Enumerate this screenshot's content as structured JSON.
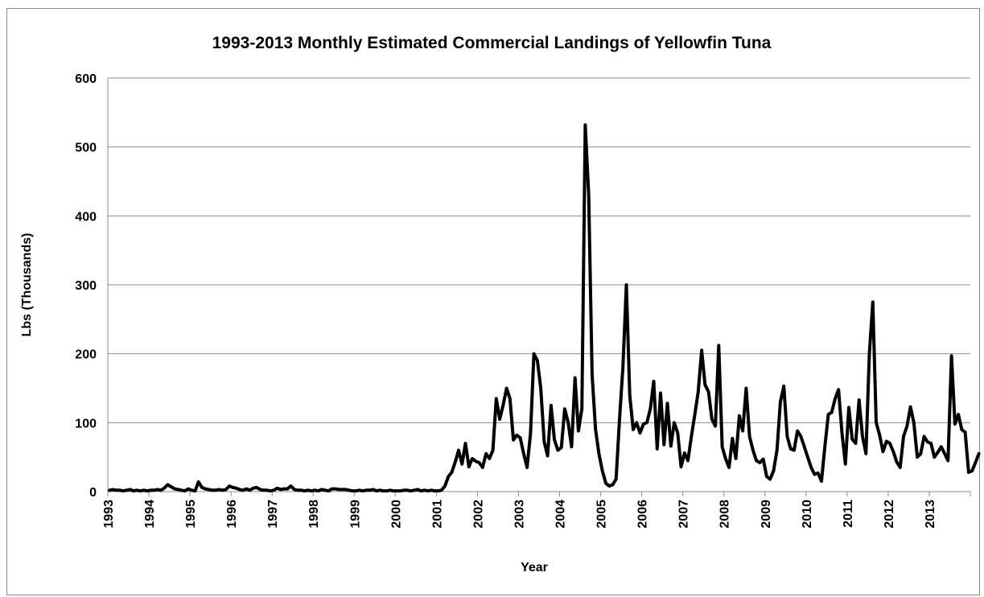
{
  "chart_data": {
    "type": "line",
    "title": "1993-2013 Monthly Estimated Commercial Landings of Yellowfin Tuna",
    "xlabel": "Year",
    "ylabel": "Lbs (Thousands)",
    "ylim": [
      0,
      600
    ],
    "yticks": [
      "0",
      "100",
      "200",
      "300",
      "400",
      "500",
      "600"
    ],
    "xticks": [
      "1993",
      "1994",
      "1995",
      "1996",
      "1997",
      "1998",
      "1999",
      "2000",
      "2001",
      "2002",
      "2003",
      "2004",
      "2005",
      "2006",
      "2007",
      "2008",
      "2009",
      "2010",
      "2011",
      "2012",
      "2013"
    ],
    "grid": "horizontal",
    "line_color": "#000000",
    "series": [
      {
        "x_start": "1993-01",
        "frequency": "monthly",
        "values": [
          2,
          3,
          2,
          2,
          1,
          2,
          3,
          1,
          2,
          1,
          2,
          1,
          2,
          2,
          3,
          2,
          5,
          10,
          7,
          4,
          3,
          2,
          1,
          4,
          2,
          1,
          14,
          6,
          4,
          3,
          2,
          2,
          3,
          2,
          3,
          8,
          6,
          5,
          3,
          2,
          4,
          2,
          5,
          6,
          3,
          2,
          2,
          1,
          2,
          5,
          3,
          4,
          4,
          8,
          3,
          2,
          2,
          1,
          2,
          1,
          2,
          1,
          3,
          2,
          1,
          4,
          4,
          3,
          3,
          3,
          2,
          1,
          1,
          2,
          1,
          2,
          2,
          3,
          1,
          2,
          1,
          1,
          2,
          1,
          1,
          1,
          2,
          2,
          1,
          2,
          3,
          1,
          2,
          1,
          2,
          1,
          1,
          2,
          8,
          22,
          28,
          43,
          60,
          40,
          70,
          36,
          48,
          44,
          42,
          35,
          55,
          48,
          60,
          135,
          105,
          125,
          150,
          135,
          75,
          82,
          78,
          55,
          35,
          85,
          200,
          190,
          150,
          72,
          52,
          125,
          75,
          60,
          64,
          120,
          100,
          65,
          165,
          88,
          120,
          532,
          430,
          170,
          90,
          55,
          30,
          12,
          8,
          10,
          18,
          105,
          180,
          300,
          140,
          90,
          100,
          85,
          98,
          100,
          120,
          160,
          62,
          143,
          68,
          128,
          66,
          100,
          85,
          36,
          56,
          45,
          80,
          112,
          145,
          205,
          155,
          145,
          105,
          95,
          212,
          65,
          48,
          35,
          77,
          48,
          110,
          88,
          150,
          80,
          60,
          45,
          42,
          47,
          22,
          18,
          30,
          60,
          130,
          153,
          80,
          62,
          60,
          88,
          80,
          65,
          50,
          35,
          25,
          27,
          15,
          65,
          112,
          115,
          135,
          148,
          85,
          40,
          122,
          76,
          70,
          133,
          80,
          55,
          200,
          275,
          100,
          82,
          58,
          73,
          70,
          58,
          43,
          35,
          80,
          95,
          123,
          100,
          50,
          55,
          80,
          72,
          70,
          50,
          57,
          65,
          55,
          45,
          197,
          98,
          112,
          90,
          86,
          28,
          30,
          42,
          55
        ]
      }
    ]
  }
}
